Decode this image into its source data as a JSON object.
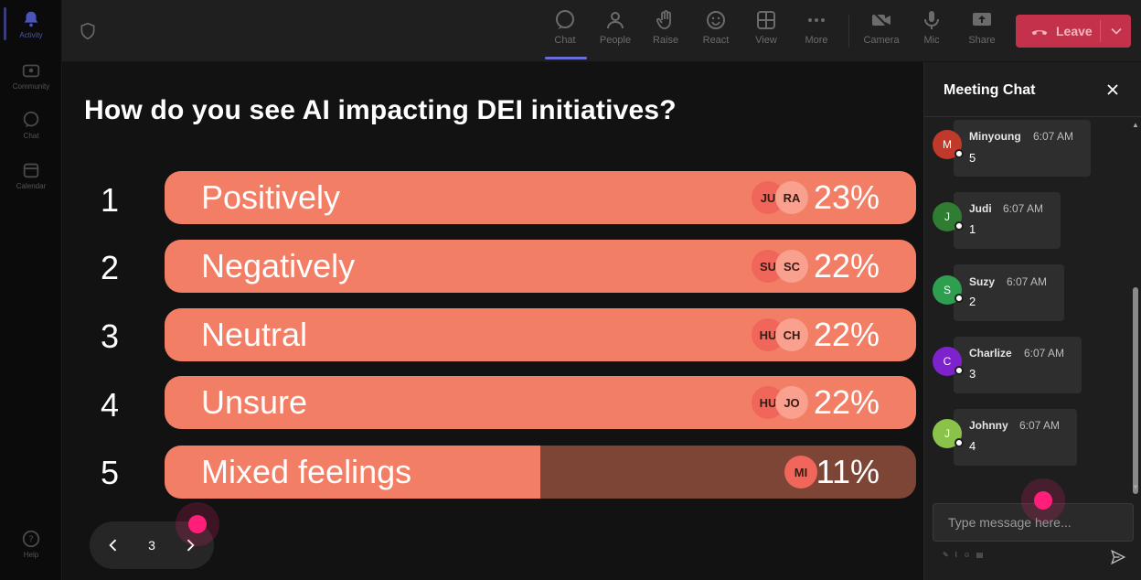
{
  "rail": {
    "items": [
      {
        "label": "Activity",
        "icon": "bell-icon"
      },
      {
        "label": "Community",
        "icon": "community-icon"
      },
      {
        "label": "Chat",
        "icon": "chat-icon"
      },
      {
        "label": "Calendar",
        "icon": "calendar-icon"
      }
    ],
    "help": {
      "label": "Help",
      "icon": "help-icon"
    }
  },
  "toolbar": {
    "chat": "Chat",
    "people": "People",
    "raise": "Raise",
    "react": "React",
    "view": "View",
    "more": "More",
    "camera": "Camera",
    "mic": "Mic",
    "share": "Share",
    "leave": "Leave"
  },
  "poll": {
    "question": "How do you see AI impacting DEI initiatives?",
    "options": [
      {
        "num": "1",
        "label": "Positively",
        "percent": "23%",
        "fill": 1.0,
        "avatars": [
          "JU",
          "RA"
        ]
      },
      {
        "num": "2",
        "label": "Negatively",
        "percent": "22%",
        "fill": 1.0,
        "avatars": [
          "SU",
          "SC"
        ]
      },
      {
        "num": "3",
        "label": "Neutral",
        "percent": "22%",
        "fill": 1.0,
        "avatars": [
          "HU",
          "CH"
        ]
      },
      {
        "num": "4",
        "label": "Unsure",
        "percent": "22%",
        "fill": 1.0,
        "avatars": [
          "HU",
          "JO"
        ]
      },
      {
        "num": "5",
        "label": "Mixed feelings",
        "percent": "11%",
        "fill": 0.5,
        "avatars": [
          "MI"
        ]
      }
    ],
    "page": "3"
  },
  "chat": {
    "title": "Meeting Chat",
    "messages": [
      {
        "initial": "M",
        "name": "Minyoung",
        "time": "6:07 AM",
        "text": "5",
        "color": "#c0392b"
      },
      {
        "initial": "J",
        "name": "Judi",
        "time": "6:07 AM",
        "text": "1",
        "color": "#2e7d32"
      },
      {
        "initial": "S",
        "name": "Suzy",
        "time": "6:07 AM",
        "text": "2",
        "color": "#2e9e4f"
      },
      {
        "initial": "C",
        "name": "Charlize",
        "time": "6:07 AM",
        "text": "3",
        "color": "#7e22ce"
      },
      {
        "initial": "J",
        "name": "Johnny",
        "time": "6:07 AM",
        "text": "4",
        "color": "#8bc34a"
      }
    ],
    "placeholder": "Type message here..."
  },
  "colors": {
    "bar_fill": "#f27e65",
    "bar_track": "#7d4536",
    "leave": "#c4314b",
    "accent": "#6a6fd6"
  }
}
